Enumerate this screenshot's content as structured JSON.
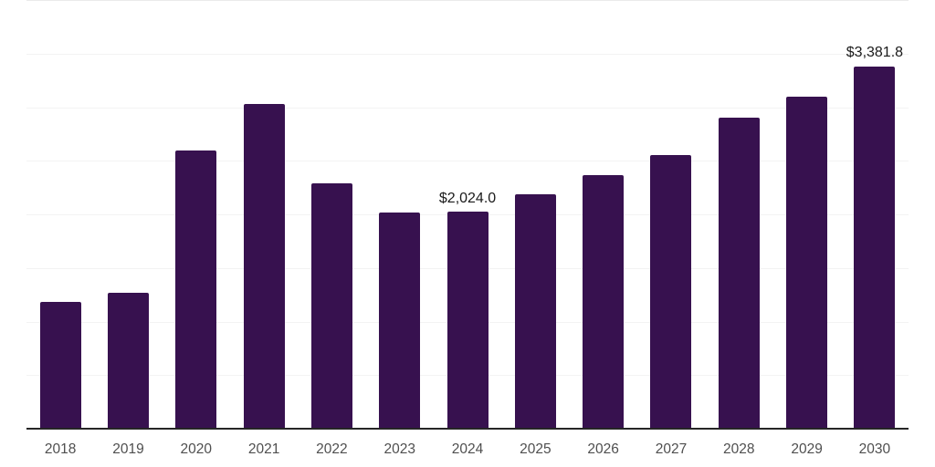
{
  "chart_data": {
    "type": "bar",
    "title": "",
    "xlabel": "",
    "ylabel": "",
    "legend": "none",
    "grid": true,
    "y_tick_labels_visible": false,
    "ylim": [
      0,
      4000
    ],
    "grid_interval": 500,
    "categories": [
      "2018",
      "2019",
      "2020",
      "2021",
      "2022",
      "2023",
      "2024",
      "2025",
      "2026",
      "2027",
      "2028",
      "2029",
      "2030"
    ],
    "values": [
      1183,
      1268,
      2598,
      3032,
      2292,
      2017,
      2024.0,
      2187,
      2366,
      2553,
      2902,
      3098,
      3381.8
    ],
    "point_labels": [
      "",
      "",
      "",
      "",
      "",
      "",
      "$2,024.0",
      "",
      "",
      "",
      "",
      "",
      "$3,381.8"
    ],
    "colors": {
      "bar": "#37114f",
      "data_label": "#1a1a1a",
      "tick_label": "#4f4f4f",
      "axis_line": "#262626",
      "gridline": "#f3f3f3",
      "top_gridline": "#ebebeb",
      "background": "#ffffff"
    }
  }
}
